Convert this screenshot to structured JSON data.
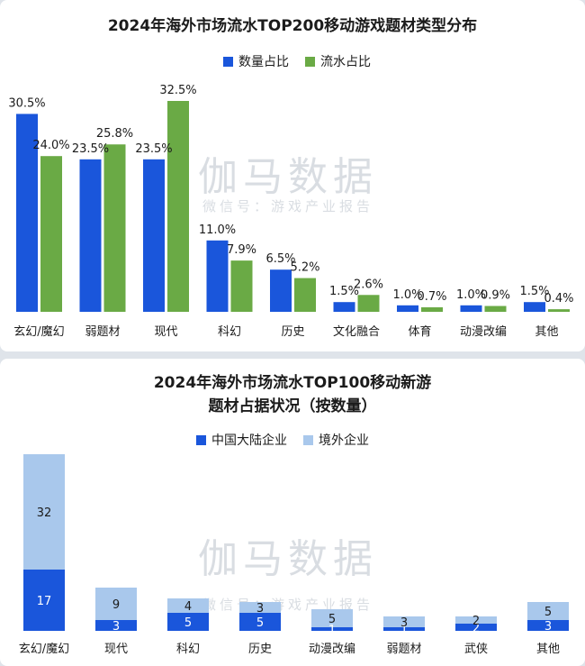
{
  "chart_data": [
    {
      "type": "bar",
      "title": "2024年海外市场流水TOP200移动游戏题材类型分布",
      "categories": [
        "玄幻/魔幻",
        "弱题材",
        "现代",
        "科幻",
        "历史",
        "文化融合",
        "体育",
        "动漫改编",
        "其他"
      ],
      "series": [
        {
          "name": "数量占比",
          "values": [
            30.5,
            23.5,
            23.5,
            11.0,
            6.5,
            1.5,
            1.0,
            1.0,
            1.5
          ],
          "labels": [
            "30.5%",
            "23.5%",
            "23.5%",
            "11.0%",
            "6.5%",
            "1.5%",
            "1.0%",
            "1.0%",
            "1.5%"
          ],
          "color": "#1a56db"
        },
        {
          "name": "流水占比",
          "values": [
            24.0,
            25.8,
            32.5,
            7.9,
            5.2,
            2.6,
            0.7,
            0.9,
            0.4
          ],
          "labels": [
            "24.0%",
            "25.8%",
            "32.5%",
            "7.9%",
            "5.2%",
            "2.6%",
            "0.7%",
            "0.9%",
            "0.4%"
          ],
          "color": "#6aaa45"
        }
      ],
      "ylim": [
        0,
        32.5
      ],
      "legend": "top-center",
      "grid": false
    },
    {
      "type": "bar",
      "stacked": true,
      "title": "2024年海外市场流水TOP100移动新游题材占据状况（按数量）",
      "title_lines": [
        "2024年海外市场流水TOP100移动新游",
        "题材占据状况（按数量）"
      ],
      "categories": [
        "玄幻/魔幻",
        "现代",
        "科幻",
        "历史",
        "动漫改编",
        "弱题材",
        "武侠",
        "其他"
      ],
      "series": [
        {
          "name": "中国大陆企业",
          "values": [
            17,
            3,
            5,
            5,
            1,
            1,
            2,
            3
          ],
          "color": "#1a56db"
        },
        {
          "name": "境外企业",
          "values": [
            32,
            9,
            4,
            3,
            5,
            3,
            2,
            5
          ],
          "color": "#a9c8ec"
        }
      ],
      "ylim": [
        0,
        49
      ],
      "legend": "top-center",
      "grid": false
    }
  ],
  "watermark": {
    "big": "伽马数据",
    "small": "微信号：游戏产业报告"
  }
}
